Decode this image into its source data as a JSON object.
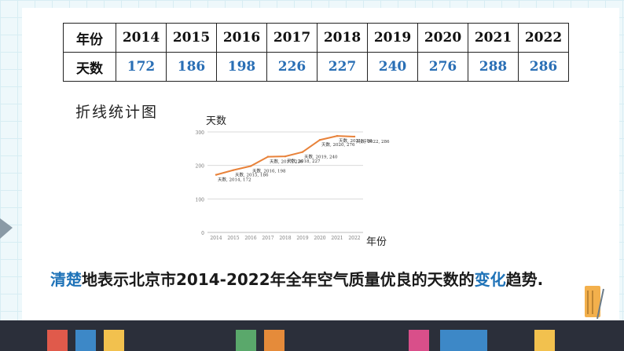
{
  "table": {
    "row1_header": "年份",
    "row2_header": "天数",
    "years": [
      "2014",
      "2015",
      "2016",
      "2017",
      "2018",
      "2019",
      "2020",
      "2021",
      "2022"
    ],
    "days": [
      "172",
      "186",
      "198",
      "226",
      "227",
      "240",
      "276",
      "288",
      "286"
    ]
  },
  "chart_heading": "折线统计图",
  "chart_data": {
    "type": "line",
    "x": [
      "2014",
      "2015",
      "2016",
      "2017",
      "2018",
      "2019",
      "2020",
      "2021",
      "2022"
    ],
    "series": [
      {
        "name": "天数",
        "values": [
          172,
          186,
          198,
          226,
          227,
          240,
          276,
          288,
          286
        ]
      }
    ],
    "ylabel": "天数",
    "xlabel": "年份",
    "yticks": [
      0,
      100,
      200,
      300
    ],
    "ylim": [
      0,
      300
    ],
    "data_labels": [
      "天数, 2014, 172",
      "天数, 2015, 186",
      "天数, 2016, 198",
      "天数, 2017, 226",
      "天数, 2018, 227",
      "天数, 2019, 240",
      "天数, 2020, 276",
      "天数, 2021, 288",
      "天数, 2022, 286"
    ],
    "line_color": "#e8823a",
    "grid": true
  },
  "caption": {
    "part1": "清楚",
    "part2": "地表示北京市2014-2022年全年空气质量优良的天数的",
    "part3": "变化",
    "part4": "趋势."
  },
  "colors": {
    "value_blue": "#2a6fb5",
    "highlight_blue": "#1f73b8"
  }
}
